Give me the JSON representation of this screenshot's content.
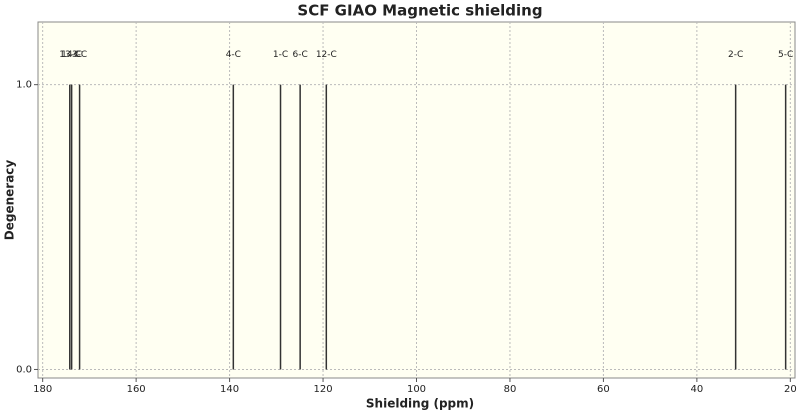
{
  "chart_data": {
    "type": "spectrum",
    "title": "SCF GIAO Magnetic shielding",
    "x_label": "Shielding (ppm)",
    "y_label": "Degeneracy",
    "x": [
      174.2,
      173.8,
      172.1,
      139.2,
      129.1,
      124.9,
      119.3,
      31.7,
      21.0
    ],
    "values": [
      1,
      1,
      1,
      1,
      1,
      1,
      1,
      1,
      1
    ],
    "peak_labels": [
      "13-C",
      "14-C",
      "3-C",
      "4-C",
      "1-C",
      "6-C",
      "12-C",
      "2-C",
      "5-C"
    ],
    "color": "#333333",
    "xlim": [
      181,
      19
    ],
    "xticks": [
      180,
      160,
      140,
      120,
      100,
      80,
      60,
      40,
      20
    ],
    "ylim": [
      -0.03,
      1.22
    ],
    "yticks": [
      {
        "value": 0,
        "label": "0.0"
      },
      {
        "value": 1,
        "label": "1.0"
      }
    ],
    "grid": true
  }
}
